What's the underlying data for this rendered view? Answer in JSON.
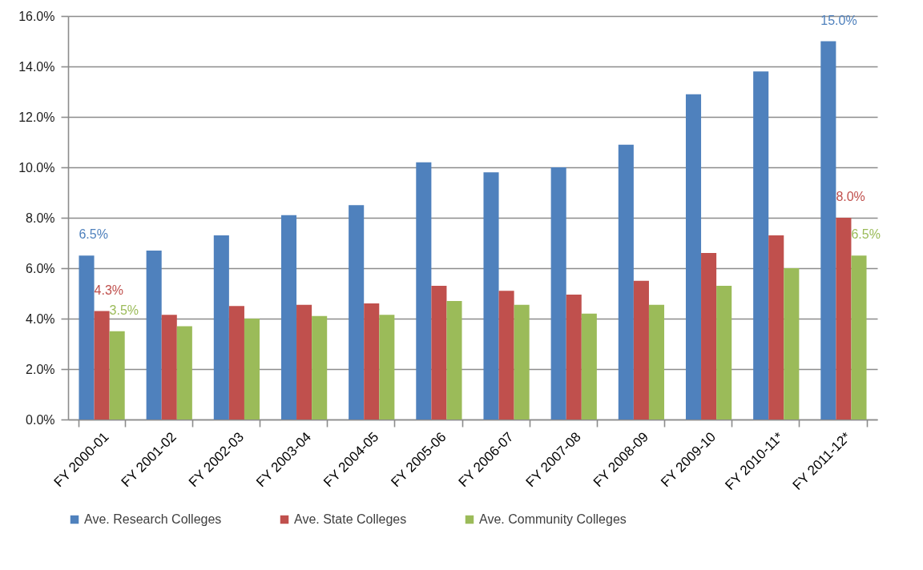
{
  "chart_data": {
    "type": "bar",
    "categories": [
      "FY 2000-01",
      "FY 2001-02",
      "FY 2002-03",
      "FY 2003-04",
      "FY 2004-05",
      "FY 2005-06",
      "FY 2006-07",
      "FY 2007-08",
      "FY 2008-09",
      "FY 2009-10",
      "FY 2010-11*",
      "FY 2011-12*"
    ],
    "series": [
      {
        "name": "Ave. Research Colleges",
        "color": "#4f81bd",
        "values": [
          6.5,
          6.7,
          7.3,
          8.1,
          8.5,
          10.2,
          9.8,
          10.0,
          10.9,
          12.9,
          13.8,
          15.0
        ],
        "value_labels": [
          "6.5%",
          null,
          null,
          null,
          null,
          null,
          null,
          null,
          null,
          null,
          null,
          "15.0%"
        ]
      },
      {
        "name": "Ave. State Colleges",
        "color": "#c0504d",
        "values": [
          4.3,
          4.15,
          4.5,
          4.55,
          4.6,
          5.3,
          5.1,
          4.95,
          5.5,
          6.6,
          7.3,
          8.0
        ],
        "value_labels": [
          "4.3%",
          null,
          null,
          null,
          null,
          null,
          null,
          null,
          null,
          null,
          null,
          "8.0%"
        ]
      },
      {
        "name": "Ave. Community Colleges",
        "color": "#9bbb59",
        "values": [
          3.5,
          3.7,
          4.0,
          4.1,
          4.15,
          4.7,
          4.55,
          4.2,
          4.55,
          5.3,
          6.0,
          6.5
        ],
        "value_labels": [
          "3.5%",
          null,
          null,
          null,
          null,
          null,
          null,
          null,
          null,
          null,
          null,
          "6.5%"
        ]
      }
    ],
    "ylim": [
      0,
      16
    ],
    "yticks": [
      {
        "value": 0,
        "label": "0.0%"
      },
      {
        "value": 2,
        "label": "2.0%"
      },
      {
        "value": 4,
        "label": "4.0%"
      },
      {
        "value": 6,
        "label": "6.0%"
      },
      {
        "value": 8,
        "label": "8.0%"
      },
      {
        "value": 10,
        "label": "10.0%"
      },
      {
        "value": 12,
        "label": "12.0%"
      },
      {
        "value": 14,
        "label": "14.0%"
      },
      {
        "value": 16,
        "label": "16.0%"
      }
    ],
    "grid": "y",
    "legend": "bottom"
  }
}
